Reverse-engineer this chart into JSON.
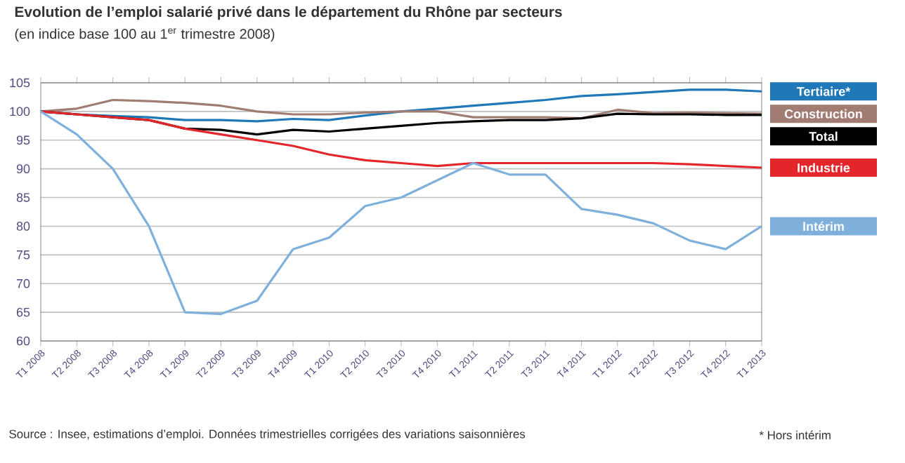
{
  "chart_data": {
    "type": "line",
    "title": "Evolution de l’emploi salarié privé dans le département du Rhône par secteurs",
    "subtitle": "(en indice base 100 au 1$^{er}$ trimestre 2008)",
    "categories": [
      "T1 2008",
      "T2 2008",
      "T3 2008",
      "T4 2008",
      "T1 2009",
      "T2 2009",
      "T3 2009",
      "T4 2009",
      "T1 2010",
      "T2 2010",
      "T3 2010",
      "T4 2010",
      "T1 2011",
      "T2 2011",
      "T3 2011",
      "T4 2011",
      "T1 2012",
      "T2 2012",
      "T3 2012",
      "T4 2012",
      "T1 2013"
    ],
    "series": [
      {
        "name": "Tertiaire*",
        "color": "#1f78b8",
        "values": [
          100,
          99.5,
          99.2,
          99,
          98.5,
          98.5,
          98.3,
          98.7,
          98.5,
          99.3,
          100,
          100.5,
          101,
          101.5,
          102,
          102.7,
          103,
          103.4,
          103.8,
          103.8,
          103.5
        ]
      },
      {
        "name": "Construction",
        "color": "#a07c72",
        "values": [
          100,
          100.5,
          102,
          101.8,
          101.5,
          101,
          100,
          99.5,
          99.5,
          99.8,
          100,
          100,
          99,
          99,
          99,
          98.8,
          100.3,
          99.7,
          99.8,
          99.7,
          99.6
        ]
      },
      {
        "name": "Total",
        "color": "#000000",
        "values": [
          100,
          99.5,
          99,
          98.5,
          97,
          96.8,
          96,
          96.8,
          96.5,
          97,
          97.5,
          98,
          98.3,
          98.5,
          98.5,
          98.8,
          99.6,
          99.5,
          99.5,
          99.4,
          99.4
        ]
      },
      {
        "name": "Industrie",
        "color": "#e4262b",
        "values": [
          100,
          99.5,
          99,
          98.5,
          97,
          96,
          95,
          94,
          92.5,
          91.5,
          91,
          90.5,
          91,
          91,
          91,
          91,
          91,
          91,
          90.8,
          90.5,
          90.2
        ]
      },
      {
        "name": "Intérim",
        "color": "#7fb0dc",
        "values": [
          100,
          96,
          90,
          80,
          65,
          64.7,
          67,
          76,
          78,
          83.5,
          85,
          88,
          91,
          89,
          89,
          83,
          82,
          80.5,
          77.5,
          76,
          80
        ]
      }
    ],
    "ylim": [
      60,
      105
    ],
    "yticks": [
      60,
      65,
      70,
      75,
      80,
      85,
      90,
      95,
      100,
      105
    ],
    "grid": "y",
    "legend": "right",
    "marker": "none",
    "line_style": "solid",
    "annotations": [
      "Source : Insee, estimations d’emploi. Données trimestrielles corrigées des variations saisonnières",
      "* Hors intérim"
    ]
  }
}
